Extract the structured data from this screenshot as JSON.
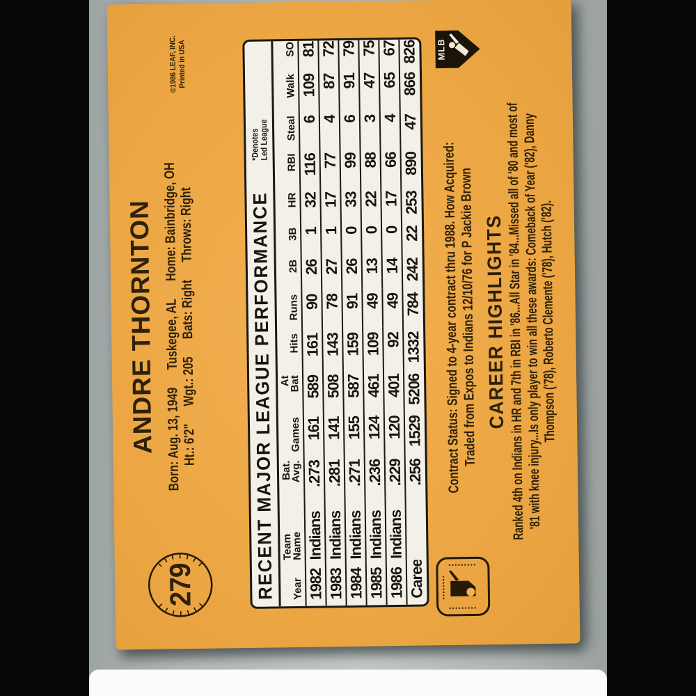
{
  "theme": {
    "frame_black": "#070707",
    "scan_gray": "#aab1b0",
    "scan_gray_light": "#c3c8c7",
    "bottom_strip_white": "#fbfbf9",
    "card_orange": "#eca643",
    "card_orange_light": "#f3b153",
    "ink": "#2e2108",
    "table_ink": "#181410",
    "table_bg": "#f3f0e7",
    "table_line": "#1c1812"
  },
  "card": {
    "card_number": "279",
    "player_name": "ANDRE THORNTON",
    "bio": {
      "born": "Born: Aug. 13, 1949",
      "birthplace": "Tuskegee, AL",
      "home": "Home: Bainbridge, OH",
      "height": "Ht.: 6'2\"",
      "weight": "Wgt.: 205",
      "bats": "Bats: Right",
      "throws": "Throws: Right"
    },
    "copyright_line1": "©1986 LEAF, INC.",
    "copyright_line2": "Printed in USA",
    "stats_table": {
      "title": "RECENT MAJOR LEAGUE PERFORMANCE",
      "note_line1": "*Denotes",
      "note_line2": "Led League",
      "columns": [
        [
          "Year"
        ],
        [
          "Team",
          "Name"
        ],
        [
          "Bat.",
          "Avg."
        ],
        [
          "Games"
        ],
        [
          "At",
          "Bat"
        ],
        [
          "Hits"
        ],
        [
          "Runs"
        ],
        [
          "2B"
        ],
        [
          "3B"
        ],
        [
          "HR"
        ],
        [
          "RBI"
        ],
        [
          "Steal"
        ],
        [
          "Walk"
        ],
        [
          "SO"
        ]
      ],
      "rows": [
        [
          "1982",
          "Indians",
          ".273",
          "161",
          "589",
          "161",
          "90",
          "26",
          "1",
          "32",
          "116",
          "6",
          "109",
          "81"
        ],
        [
          "1983",
          "Indians",
          ".281",
          "141",
          "508",
          "143",
          "78",
          "27",
          "1",
          "17",
          "77",
          "4",
          "87",
          "72"
        ],
        [
          "1984",
          "Indians",
          ".271",
          "155",
          "587",
          "159",
          "91",
          "26",
          "0",
          "33",
          "99",
          "6",
          "91",
          "79"
        ],
        [
          "1985",
          "Indians",
          ".236",
          "124",
          "461",
          "109",
          "49",
          "13",
          "0",
          "22",
          "88",
          "3",
          "47",
          "75"
        ],
        [
          "1986",
          "Indians",
          ".229",
          "120",
          "401",
          "92",
          "49",
          "14",
          "0",
          "17",
          "66",
          "4",
          "65",
          "67"
        ],
        [
          "Career",
          "",
          ".256",
          "1529",
          "5206",
          "1332",
          "784",
          "242",
          "22",
          "253",
          "890",
          "47",
          "866",
          "826"
        ]
      ]
    },
    "contract_line1": "Contract Status: Signed to 4-year contract thru 1988. How Acquired:",
    "contract_line2": "Traded from Expos to Indians 12/10/76 for P Jackie Brown",
    "career_highlights_title": "CAREER HIGHLIGHTS",
    "career_highlights_lines": [
      "Ranked 4th on Indians in HR and 7th in RBI in '86...All Star in '84...Missed all of '80 and most of",
      "'81 with knee injury...Is only player to win all these awards: Comeback of Year ('82), Danny",
      "Thompson ('78), Roberto Clemente ('78), Hutch ('82)."
    ]
  }
}
